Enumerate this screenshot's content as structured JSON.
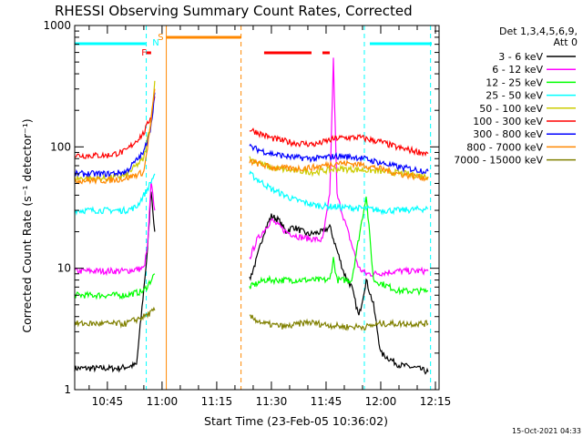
{
  "chart_data": {
    "type": "line",
    "title": "RHESSI Observing Summary Count Rates, Corrected",
    "xlabel": "Start Time (23-Feb-05 10:36:02)",
    "ylabel": "Corrected Count Rate (s⁻¹ detector⁻¹)",
    "y_scale": "log",
    "ylim": [
      1,
      1000
    ],
    "xlim_minutes": [
      "10:36:02",
      "12:16:00"
    ],
    "x_ticks": [
      "10:45",
      "11:00",
      "11:15",
      "11:30",
      "11:45",
      "12:00",
      "12:15"
    ],
    "y_ticks": [
      "1",
      "10",
      "100",
      "1000"
    ],
    "legend_header": [
      "Det 1,3,4,5,6,9,",
      "Att 0"
    ],
    "legend_position": "right",
    "timestamp": "15-Oct-2021 04:33",
    "flag_labels": [
      "F",
      "N",
      "S"
    ],
    "data_gaps": [
      [
        "10:58:40",
        "11:24:00"
      ]
    ],
    "markers": {
      "night_boundaries": [
        "10:55:40",
        "11:55:30",
        "12:13:40"
      ],
      "saa_boundaries": [
        "11:01:10",
        "11:21:40"
      ]
    },
    "series": [
      {
        "name": "3 - 6 keV",
        "color": "#000000",
        "x": [
          "10:36",
          "10:48",
          "10:53",
          "10:56",
          "10:57",
          "10:58",
          "11:24",
          "11:26",
          "11:28",
          "11:30",
          "11:32",
          "11:34",
          "11:36",
          "11:40",
          "11:44",
          "11:46",
          "11:48",
          "11:50",
          "11:52",
          "11:54",
          "11:56",
          "11:58",
          "12:00",
          "12:05",
          "12:10",
          "12:13"
        ],
        "y": [
          1.5,
          1.5,
          1.6,
          14,
          45,
          20,
          8,
          12,
          20,
          27,
          25,
          20,
          22,
          19,
          20,
          22,
          14,
          9,
          7,
          4,
          8,
          5,
          2,
          1.6,
          1.5,
          1.4
        ]
      },
      {
        "name": "6 - 12 keV",
        "color": "#ff00ff",
        "x": [
          "10:36",
          "10:50",
          "10:55",
          "10:56",
          "10:57",
          "10:58",
          "11:24",
          "11:26",
          "11:30",
          "11:34",
          "11:38",
          "11:44",
          "11:46",
          "11:47",
          "11:48",
          "11:50",
          "11:54",
          "11:56",
          "11:58",
          "12:05",
          "12:13"
        ],
        "y": [
          9.5,
          9.5,
          10,
          15,
          50,
          30,
          12,
          17,
          25,
          20,
          18,
          17,
          40,
          520,
          40,
          25,
          10,
          9,
          9,
          9.5,
          9.5
        ]
      },
      {
        "name": "12 - 25 keV",
        "color": "#00ff00",
        "x": [
          "10:36",
          "10:50",
          "10:55",
          "10:57",
          "10:58",
          "11:24",
          "11:28",
          "11:34",
          "11:40",
          "11:46",
          "11:47",
          "11:48",
          "11:52",
          "11:56",
          "11:58",
          "12:05",
          "12:13"
        ],
        "y": [
          6,
          6,
          6.5,
          8,
          9,
          7,
          8,
          8,
          8,
          8,
          12,
          8,
          8,
          40,
          8,
          6.5,
          6.5
        ]
      },
      {
        "name": "25 - 50 keV",
        "color": "#00ffff",
        "x": [
          "10:36",
          "10:45",
          "10:50",
          "10:53",
          "10:56",
          "10:58",
          "11:24",
          "11:30",
          "11:36",
          "11:42",
          "11:48",
          "11:56",
          "12:00",
          "12:05",
          "12:13"
        ],
        "y": [
          30,
          30,
          30,
          32,
          45,
          60,
          60,
          45,
          37,
          33,
          32,
          31,
          30,
          30,
          31
        ]
      },
      {
        "name": "50 - 100 keV",
        "color": "#cccc00",
        "x": [
          "10:36",
          "10:45",
          "10:50",
          "10:55",
          "10:57",
          "10:58",
          "11:24",
          "11:30",
          "11:36",
          "11:42",
          "11:48",
          "11:54",
          "12:00",
          "12:05",
          "12:13"
        ],
        "y": [
          55,
          55,
          58,
          80,
          170,
          350,
          80,
          67,
          64,
          62,
          66,
          65,
          63,
          61,
          57
        ]
      },
      {
        "name": "100 - 300 keV",
        "color": "#ff0000",
        "x": [
          "10:36",
          "10:45",
          "10:50",
          "10:55",
          "10:57",
          "10:58",
          "11:24",
          "11:30",
          "11:36",
          "11:42",
          "11:48",
          "11:54",
          "12:00",
          "12:05",
          "12:13"
        ],
        "y": [
          85,
          85,
          92,
          130,
          180,
          260,
          140,
          118,
          108,
          105,
          118,
          120,
          110,
          98,
          88
        ]
      },
      {
        "name": "300 - 800 keV",
        "color": "#0000ff",
        "x": [
          "10:36",
          "10:45",
          "10:50",
          "10:55",
          "10:57",
          "10:58",
          "11:24",
          "11:30",
          "11:36",
          "11:42",
          "11:48",
          "11:54",
          "12:00",
          "12:05",
          "12:13"
        ],
        "y": [
          60,
          60,
          62,
          90,
          150,
          280,
          100,
          88,
          82,
          80,
          84,
          82,
          74,
          68,
          63
        ]
      },
      {
        "name": "800 - 7000 keV",
        "color": "#ff8800",
        "x": [
          "10:36",
          "10:45",
          "10:50",
          "10:55",
          "10:57",
          "10:58",
          "11:24",
          "11:30",
          "11:36",
          "11:42",
          "11:48",
          "11:54",
          "12:00",
          "12:05",
          "12:13"
        ],
        "y": [
          53,
          53,
          55,
          62,
          160,
          300,
          76,
          68,
          66,
          68,
          74,
          72,
          66,
          60,
          55
        ]
      },
      {
        "name": "7000 - 15000 keV",
        "color": "#808000",
        "x": [
          "10:36",
          "10:45",
          "10:50",
          "10:55",
          "10:58",
          "11:24",
          "11:28",
          "11:34",
          "11:40",
          "11:46",
          "11:50",
          "11:56",
          "12:00",
          "12:05",
          "12:13"
        ],
        "y": [
          3.5,
          3.5,
          3.5,
          4,
          4.5,
          4,
          3.5,
          3.3,
          3.6,
          3.4,
          3.3,
          3.3,
          3.5,
          3.5,
          3.5
        ]
      }
    ]
  }
}
